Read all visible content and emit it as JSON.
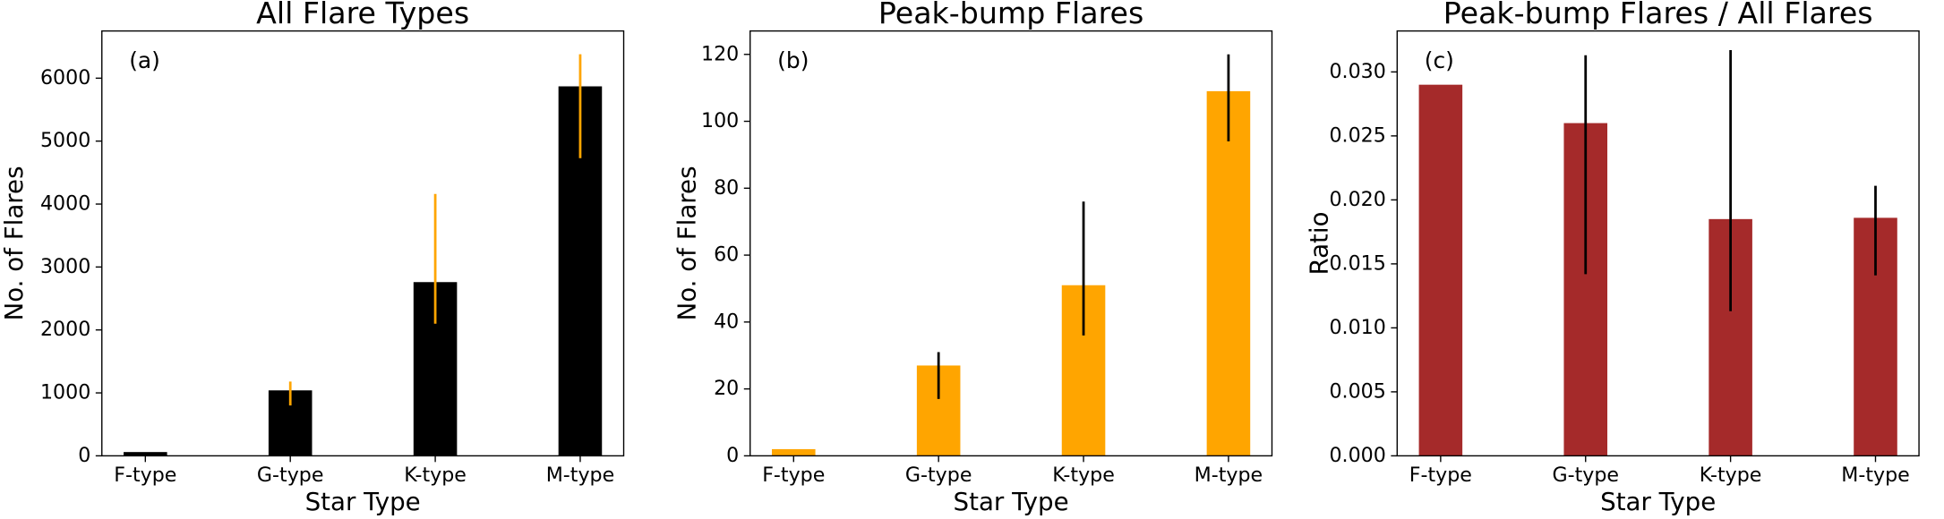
{
  "chart_data": [
    {
      "type": "bar",
      "title": "All Flare Types",
      "panel_label": "(a)",
      "xlabel": "Star Type",
      "ylabel": "No. of Flares",
      "categories": [
        "F-type",
        "G-type",
        "K-type",
        "M-type"
      ],
      "values": [
        60,
        1040,
        2760,
        5870
      ],
      "errors": [
        null,
        [
          240,
          140
        ],
        [
          660,
          1400
        ],
        [
          1140,
          510
        ]
      ],
      "color": "#000000",
      "error_color": "#ffa500",
      "ylim": [
        0,
        6750
      ],
      "yticks": [
        0,
        1000,
        2000,
        3000,
        4000,
        5000,
        6000
      ]
    },
    {
      "type": "bar",
      "title": "Peak-bump Flares",
      "panel_label": "(b)",
      "xlabel": "Star Type",
      "ylabel": "No. of Flares",
      "categories": [
        "F-type",
        "G-type",
        "K-type",
        "M-type"
      ],
      "values": [
        2,
        27,
        51,
        109
      ],
      "errors": [
        null,
        [
          10,
          4
        ],
        [
          15,
          25
        ],
        [
          15,
          11
        ]
      ],
      "color": "#ffa500",
      "error_color": "#000000",
      "ylim": [
        0,
        127
      ],
      "yticks": [
        0,
        20,
        40,
        60,
        80,
        100,
        120
      ]
    },
    {
      "type": "bar",
      "title": "Peak-bump Flares / All Flares",
      "panel_label": "(c)",
      "xlabel": "Star Type",
      "ylabel": "Ratio",
      "categories": [
        "F-type",
        "G-type",
        "K-type",
        "M-type"
      ],
      "values": [
        0.029,
        0.026,
        0.0185,
        0.0186
      ],
      "errors": [
        null,
        [
          0.0118,
          0.0053
        ],
        [
          0.0072,
          0.0132
        ],
        [
          0.0045,
          0.0025
        ]
      ],
      "color": "#a52a2a",
      "error_color": "#000000",
      "ylim": [
        0,
        0.0332
      ],
      "yticks": [
        {
          "value": 0,
          "label": "0.000"
        },
        {
          "value": 0.005,
          "label": "0.005"
        },
        {
          "value": 0.01,
          "label": "0.010"
        },
        {
          "value": 0.015,
          "label": "0.015"
        },
        {
          "value": 0.02,
          "label": "0.020"
        },
        {
          "value": 0.025,
          "label": "0.025"
        },
        {
          "value": 0.03,
          "label": "0.030"
        }
      ]
    }
  ]
}
